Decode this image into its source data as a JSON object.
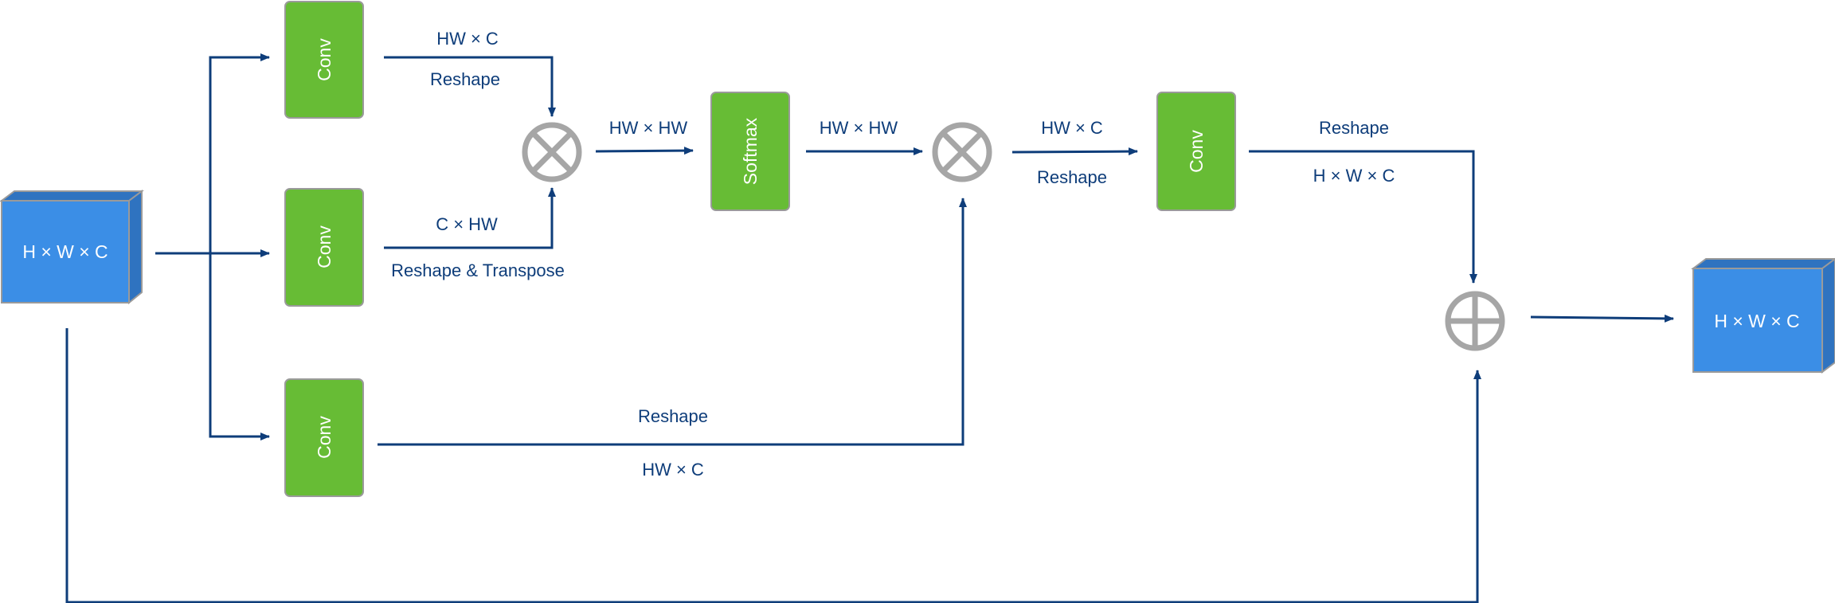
{
  "input": {
    "label": "H × W × C"
  },
  "output": {
    "label": "H × W × C"
  },
  "convs": {
    "conv1": "Conv",
    "conv2": "Conv",
    "conv3": "Conv",
    "conv4": "Conv"
  },
  "softmax": {
    "label": "Softmax"
  },
  "edge_labels": {
    "branch1_top": "HW × C",
    "branch1_bottom": "Reshape",
    "branch2_top": "C × HW",
    "branch2_bottom": "Reshape & Transpose",
    "mult1_out": "HW × HW",
    "softmax_out": "HW × HW",
    "mult2_top": "HW × C",
    "mult2_bottom": "Reshape",
    "conv4_top": "Reshape",
    "conv4_bottom": "H × W × C",
    "branch3_top": "Reshape",
    "branch3_bottom": "HW × C"
  },
  "colors": {
    "cube_front": "#3b8ee6",
    "cube_side": "#2f73c0",
    "conv_fill": "#67bc35",
    "arrow": "#0e3d7a",
    "operator": "#a6a6a6"
  },
  "icons": {
    "mult": "circled-times-icon",
    "add": "circled-plus-icon"
  }
}
